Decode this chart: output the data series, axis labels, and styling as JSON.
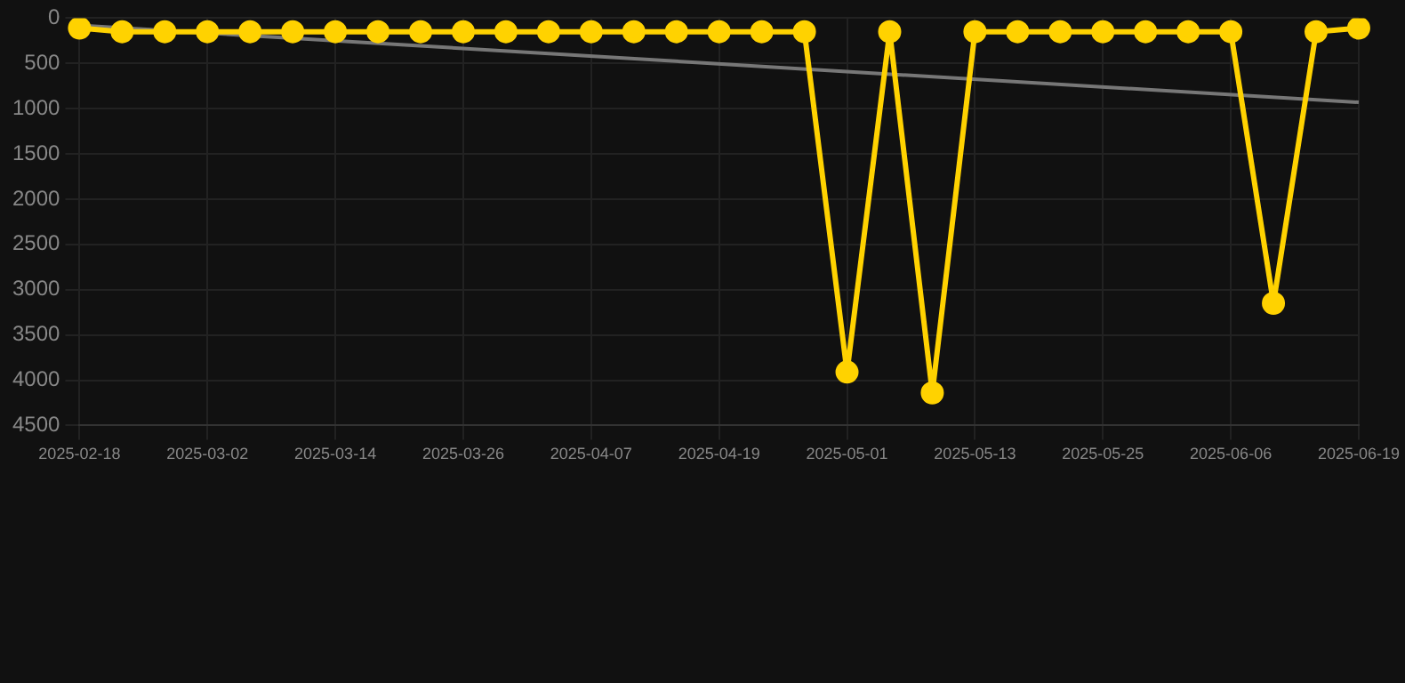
{
  "chart_data": {
    "type": "line",
    "categories": [
      "2025-02-18",
      null,
      null,
      "2025-03-02",
      null,
      null,
      "2025-03-14",
      null,
      null,
      "2025-03-26",
      null,
      null,
      "2025-04-07",
      null,
      null,
      "2025-04-19",
      null,
      null,
      "2025-05-01",
      null,
      null,
      "2025-05-13",
      null,
      null,
      "2025-05-25",
      null,
      null,
      "2025-06-06",
      null,
      null,
      "2025-06-19"
    ],
    "series": [
      {
        "color": "#ffd200",
        "values": [
          110,
          150,
          150,
          150,
          150,
          150,
          150,
          150,
          150,
          150,
          150,
          150,
          150,
          150,
          150,
          150,
          150,
          150,
          3910,
          150,
          4140,
          150,
          150,
          150,
          150,
          150,
          150,
          150,
          3150,
          150,
          110
        ]
      },
      {
        "type": "line",
        "color": "#777777",
        "marker": "none",
        "values": [
          80,
          null,
          null,
          null,
          null,
          null,
          null,
          null,
          null,
          null,
          null,
          null,
          null,
          null,
          null,
          null,
          null,
          null,
          null,
          null,
          null,
          null,
          null,
          null,
          null,
          null,
          null,
          null,
          null,
          null,
          930
        ]
      }
    ],
    "ylim": [
      4500,
      0
    ],
    "yticks": [
      0,
      500,
      1000,
      1500,
      2000,
      2500,
      3000,
      3500,
      4000,
      4500
    ],
    "grid": true,
    "marker": "circle",
    "line_style": "solid",
    "legend": false
  }
}
